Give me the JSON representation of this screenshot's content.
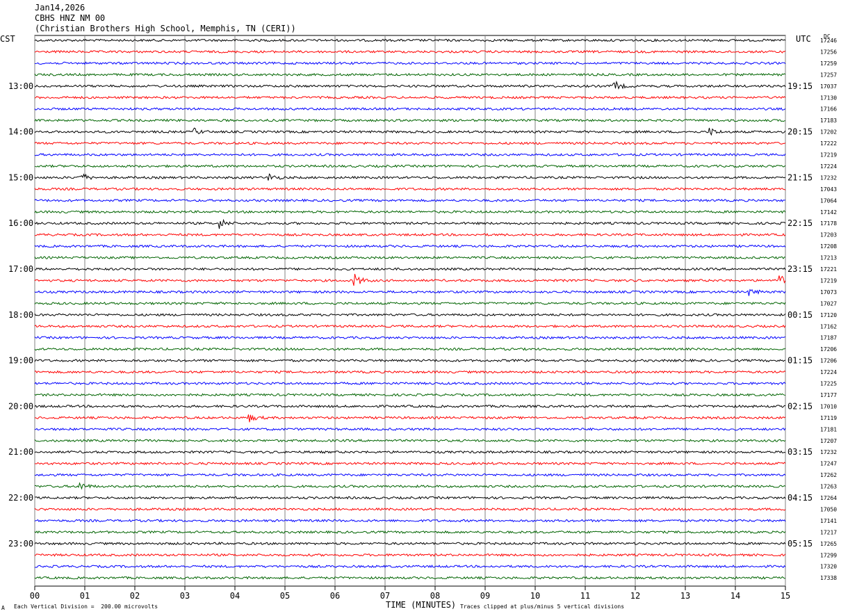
{
  "header": {
    "date": "Jan14,2026",
    "station": "CBHS HNZ NM 00",
    "location": "(Christian Brothers High School, Memphis, TN (CERI))"
  },
  "footer": {
    "left_mark": "A",
    "division_note": "Each Vertical Division =  200.00 microvolts",
    "x_title": "TIME (MINUTES)",
    "clip_note": "Traces clipped at plus/minus 5 vertical divisions"
  },
  "chart_data": {
    "type": "line",
    "title": "",
    "left_axis_label": "CST",
    "right_axis_label": "UTC",
    "dc_label": "DC",
    "xlabel": "TIME (MINUTES)",
    "xlim": [
      0,
      15
    ],
    "x_ticks": [
      "00",
      "01",
      "02",
      "03",
      "04",
      "05",
      "06",
      "07",
      "08",
      "09",
      "10",
      "11",
      "12",
      "13",
      "14",
      "15"
    ],
    "trace_colors": [
      "#000000",
      "#ff0000",
      "#0000ff",
      "#006400"
    ],
    "left_hour_labels": [
      "13:00",
      "14:00",
      "15:00",
      "16:00",
      "17:00",
      "18:00",
      "19:00",
      "20:00",
      "21:00",
      "22:00",
      "23:00"
    ],
    "right_hour_labels": [
      "19:15",
      "20:15",
      "21:15",
      "22:15",
      "23:15",
      "00:15",
      "01:15",
      "02:15",
      "03:15",
      "04:15",
      "05:15"
    ],
    "dc_values": [
      17246,
      17256,
      17259,
      17257,
      17037,
      17130,
      17166,
      17183,
      17202,
      17222,
      17219,
      17224,
      17232,
      17043,
      17064,
      17142,
      17178,
      17203,
      17208,
      17213,
      17221,
      17219,
      17073,
      17027,
      17120,
      17162,
      17187,
      17206,
      17206,
      17224,
      17225,
      17177,
      17010,
      17119,
      17181,
      17207,
      17232,
      17247,
      17262,
      17263,
      17264,
      17050,
      17141,
      17217,
      17265,
      17299,
      17320,
      17338
    ],
    "grid": true,
    "events": [
      {
        "trace": 4,
        "minute": 11.6,
        "amp": 6
      },
      {
        "trace": 8,
        "minute": 3.2,
        "amp": 4
      },
      {
        "trace": 8,
        "minute": 13.5,
        "amp": 5
      },
      {
        "trace": 12,
        "minute": 0.9,
        "amp": 8
      },
      {
        "trace": 12,
        "minute": 4.7,
        "amp": 5
      },
      {
        "trace": 16,
        "minute": 3.7,
        "amp": 7
      },
      {
        "trace": 21,
        "minute": 6.4,
        "amp": 9
      },
      {
        "trace": 21,
        "minute": 14.9,
        "amp": 8
      },
      {
        "trace": 22,
        "minute": 14.3,
        "amp": 5
      },
      {
        "trace": 33,
        "minute": 4.3,
        "amp": 5
      },
      {
        "trace": 39,
        "minute": 0.9,
        "amp": 6
      }
    ]
  }
}
